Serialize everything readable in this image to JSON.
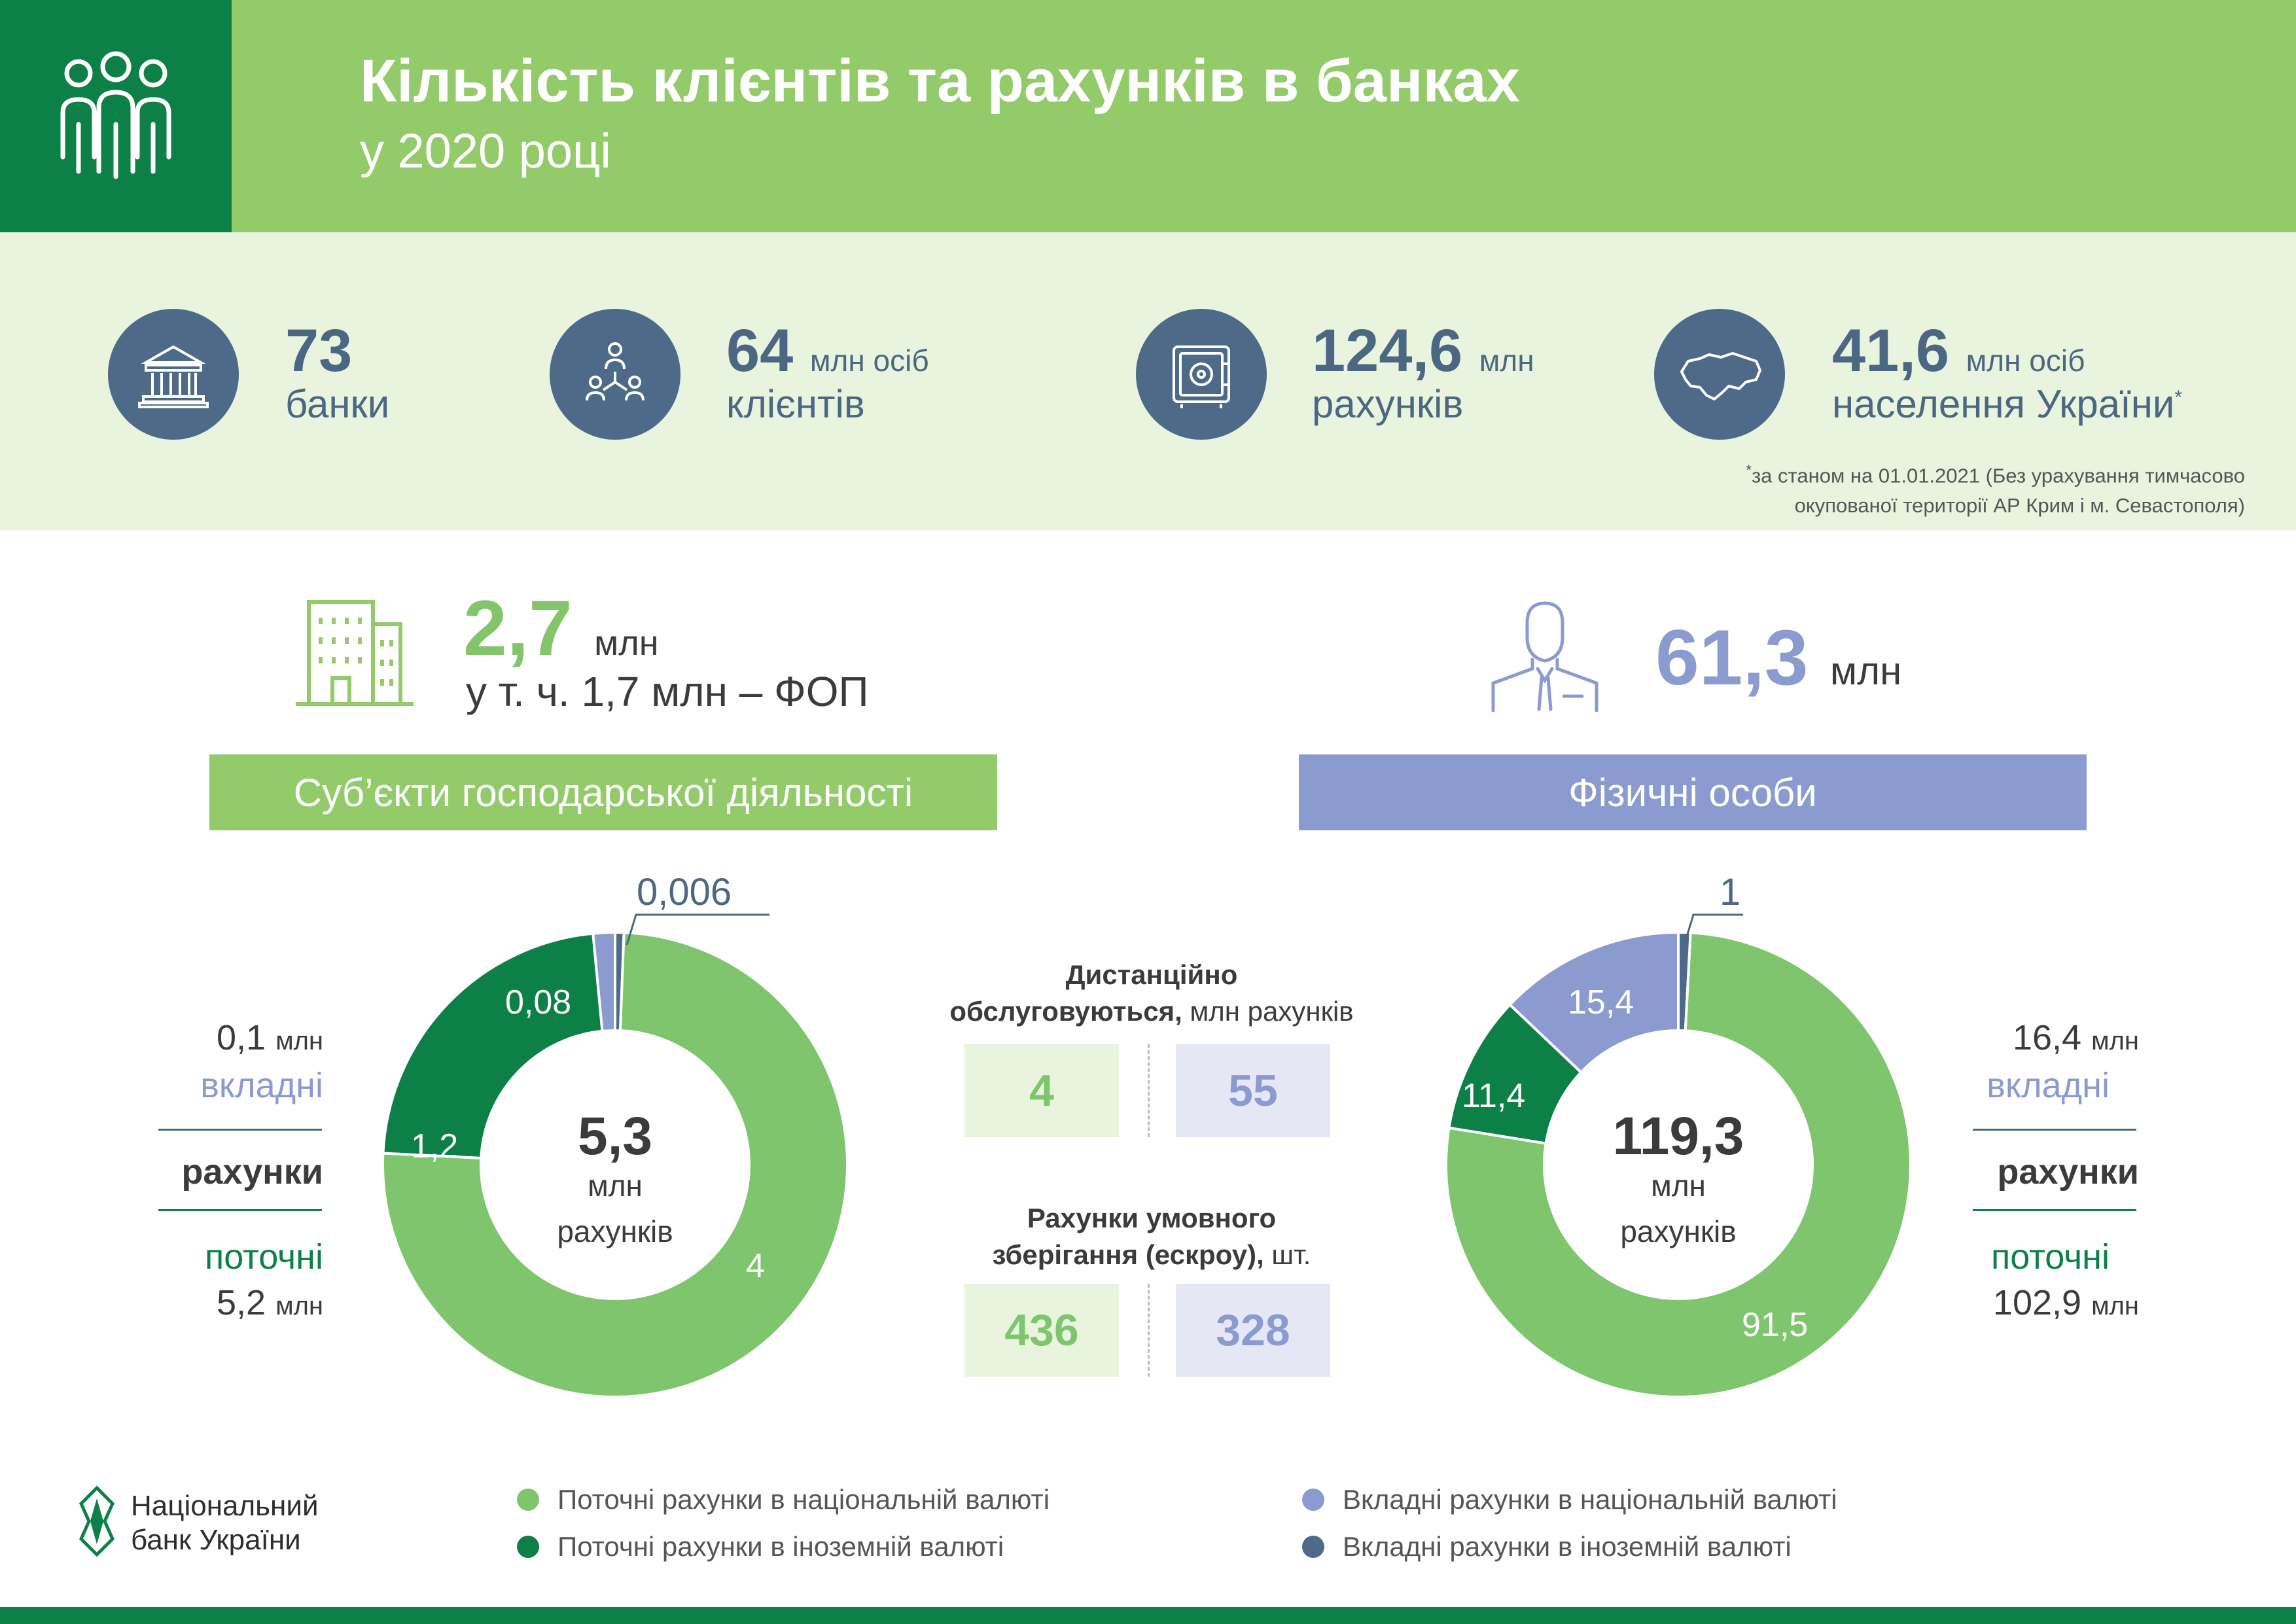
{
  "header": {
    "title": "Кількість клієнтів та рахунків в банках",
    "subtitle": "у 2020 році",
    "icon": "people-icon"
  },
  "stats": [
    {
      "value": "73",
      "unit": "",
      "label": "банки",
      "icon": "bank-building-icon"
    },
    {
      "value": "64",
      "unit": "млн осіб",
      "label": "клієнтів",
      "icon": "network-people-icon"
    },
    {
      "value": "124,6",
      "unit": "млн",
      "label": "рахунків",
      "icon": "safe-icon"
    },
    {
      "value": "41,6",
      "unit": "млн осіб",
      "label": "населення України",
      "label_mark": "*",
      "icon": "ukraine-map-icon"
    }
  ],
  "footnote": {
    "mark": "*",
    "line1": "за станом на 01.01.2021  (Без урахування тимчасово",
    "line2": "окупованої території АР Крим і м. Севастополя)"
  },
  "business": {
    "value": "2,7",
    "unit": "млн",
    "sub": "у т. ч. 1,7 млн – ФОП",
    "bar_label": "Суб’єкти господарської діяльності",
    "icon": "office-building-icon",
    "donut": {
      "total": "5,3",
      "total_unit": "млн",
      "total_label": "рахунків",
      "segments": [
        {
          "key": "current_national",
          "value": 4,
          "label": "4",
          "color": "#7fc56e"
        },
        {
          "key": "current_foreign",
          "value": 1.2,
          "label": "1,2",
          "color": "#0d8048"
        },
        {
          "key": "deposit_national",
          "value": 0.08,
          "label": "0,08",
          "color": "#8b9bcf"
        },
        {
          "key": "deposit_foreign",
          "value": 0.006,
          "label": "0,006",
          "color": "#4d6b88"
        }
      ]
    },
    "side": {
      "deposit_value": "0,1",
      "deposit_unit": "млн",
      "deposit_label": "вкладні",
      "accounts_label": "рахунки",
      "current_label": "поточні",
      "current_value": "5,2",
      "current_unit": "млн"
    }
  },
  "individuals": {
    "value": "61,3",
    "unit": "млн",
    "bar_label": "Фізичні особи",
    "icon": "person-icon",
    "donut": {
      "total": "119,3",
      "total_unit": "млн",
      "total_label": "рахунків",
      "segments": [
        {
          "key": "current_national",
          "value": 91.5,
          "label": "91,5",
          "color": "#7fc56e"
        },
        {
          "key": "current_foreign",
          "value": 11.4,
          "label": "11,4",
          "color": "#0d8048"
        },
        {
          "key": "deposit_national",
          "value": 15.4,
          "label": "15,4",
          "color": "#8b9bcf"
        },
        {
          "key": "deposit_foreign",
          "value": 1,
          "label": "1",
          "color": "#4d6b88"
        }
      ]
    },
    "side": {
      "deposit_value": "16,4",
      "deposit_unit": "млн",
      "deposit_label": "вкладні",
      "accounts_label": "рахунки",
      "current_label": "поточні",
      "current_value": "102,9",
      "current_unit": "млн"
    }
  },
  "middle": {
    "remote_title_bold_1": "Дистанційно",
    "remote_title_bold_2": "обслуговуються,",
    "remote_title_rest": " млн рахунків",
    "remote_business": "4",
    "remote_individuals": "55",
    "escrow_title_1": "Рахунки умовного",
    "escrow_title_2": "зберігання (ескроу),",
    "escrow_title_rest": " шт.",
    "escrow_business": "436",
    "escrow_individuals": "328"
  },
  "legend": [
    {
      "label": "Поточні рахунки в національній валюті",
      "color": "#7fc56e"
    },
    {
      "label": "Поточні рахунки в іноземній валюті",
      "color": "#0d8048"
    },
    {
      "label": "Вкладні рахунки в національній валюті",
      "color": "#8b9bcf"
    },
    {
      "label": "Вкладні рахунки в іноземній валюті",
      "color": "#4d6b88"
    }
  ],
  "logo": {
    "line1": "Національний",
    "line2": "банк України"
  }
}
